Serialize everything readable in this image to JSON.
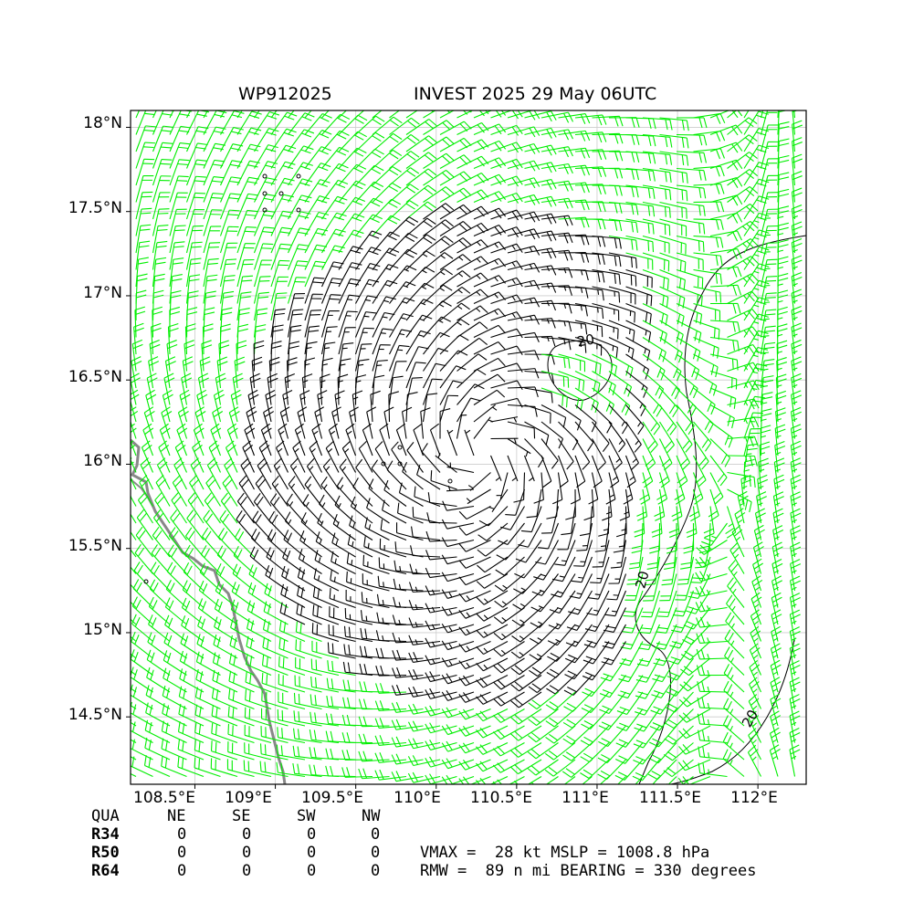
{
  "title": {
    "storm_id": "WP912025",
    "storm_info": "INVEST 2025 29 May 06UTC"
  },
  "axes": {
    "lat_labels": [
      "18°N",
      "17.5°N",
      "17°N",
      "16.5°N",
      "16°N",
      "15.5°N",
      "15°N",
      "14.5°N"
    ],
    "lon_labels": [
      "108.5°E",
      "109°E",
      "109.5°E",
      "110°E",
      "110.5°E",
      "111°E",
      "111.5°E",
      "112°E"
    ],
    "lon_range": [
      108.1,
      112.3
    ],
    "lat_range": [
      14.1,
      18.1
    ]
  },
  "contour_labels": [
    "20",
    "20",
    "20"
  ],
  "colors": {
    "barb": "#000000",
    "barb_strong": "#00ee00",
    "coast": "#888888",
    "grid": "#cccccc"
  },
  "quadrant_table": {
    "header": [
      "QUA",
      "NE",
      "SE",
      "SW",
      "NW"
    ],
    "rows": [
      {
        "label": "R34",
        "values": [
          "0",
          "0",
          "0",
          "0"
        ]
      },
      {
        "label": "R50",
        "values": [
          "0",
          "0",
          "0",
          "0"
        ]
      },
      {
        "label": "R64",
        "values": [
          "0",
          "0",
          "0",
          "0"
        ]
      }
    ]
  },
  "info": {
    "line1": "VMAX =  28 kt MSLP = 1008.8 hPa",
    "line2": "RMW =  89 n mi BEARING = 330 degrees"
  },
  "wind_field": {
    "center_lon": 110.3,
    "center_lat": 16.05,
    "rmw_nmi": 89,
    "vmax_kt": 28
  }
}
